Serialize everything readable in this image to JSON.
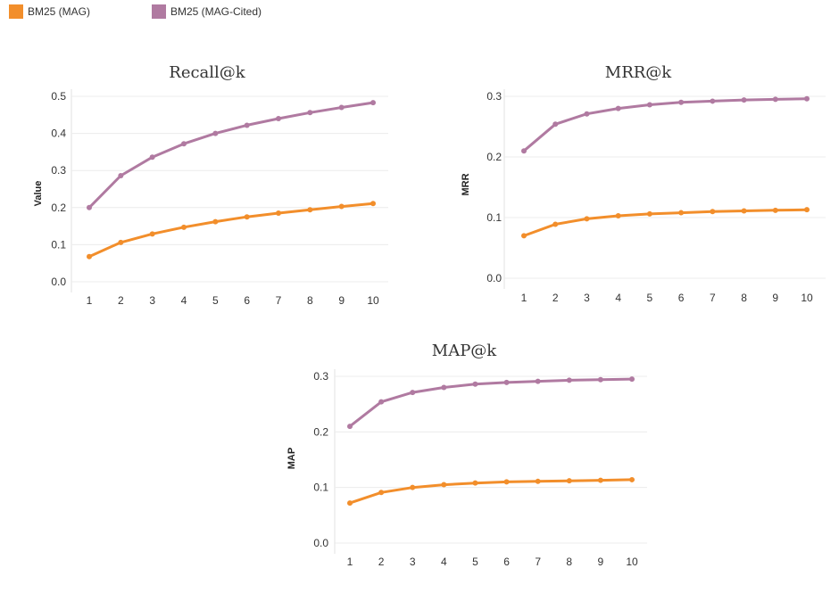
{
  "legend": {
    "items": [
      {
        "label": "BM25 (MAG)",
        "color": "#f28e2b"
      },
      {
        "label": "BM25 (MAG-Cited)",
        "color": "#b07aa1"
      }
    ]
  },
  "chart_data": [
    {
      "type": "line",
      "title": "Recall@k",
      "xlabel": "",
      "ylabel": "Value",
      "x": [
        1,
        2,
        3,
        4,
        5,
        6,
        7,
        8,
        9,
        10
      ],
      "ylim": [
        0,
        0.5
      ],
      "yticks": [
        "0.0",
        "0.1",
        "0.2",
        "0.3",
        "0.4",
        "0.5"
      ],
      "grid": true,
      "series": [
        {
          "name": "BM25 (MAG)",
          "color": "#f28e2b",
          "values": [
            0.068,
            0.106,
            0.129,
            0.147,
            0.162,
            0.175,
            0.185,
            0.194,
            0.203,
            0.211
          ]
        },
        {
          "name": "BM25 (MAG-Cited)",
          "color": "#b07aa1",
          "values": [
            0.2,
            0.286,
            0.336,
            0.372,
            0.4,
            0.422,
            0.44,
            0.456,
            0.47,
            0.483
          ]
        }
      ]
    },
    {
      "type": "line",
      "title": "MRR@k",
      "xlabel": "",
      "ylabel": "MRR",
      "x": [
        1,
        2,
        3,
        4,
        5,
        6,
        7,
        8,
        9,
        10
      ],
      "ylim": [
        0,
        0.3
      ],
      "yticks": [
        "0.0",
        "0.1",
        "0.2",
        "0.3"
      ],
      "grid": true,
      "series": [
        {
          "name": "BM25 (MAG)",
          "color": "#f28e2b",
          "values": [
            0.07,
            0.089,
            0.098,
            0.103,
            0.106,
            0.108,
            0.11,
            0.111,
            0.112,
            0.113
          ]
        },
        {
          "name": "BM25 (MAG-Cited)",
          "color": "#b07aa1",
          "values": [
            0.21,
            0.254,
            0.271,
            0.28,
            0.286,
            0.29,
            0.292,
            0.294,
            0.295,
            0.296
          ]
        }
      ]
    },
    {
      "type": "line",
      "title": "MAP@k",
      "xlabel": "",
      "ylabel": "MAP",
      "x": [
        1,
        2,
        3,
        4,
        5,
        6,
        7,
        8,
        9,
        10
      ],
      "ylim": [
        0,
        0.3
      ],
      "yticks": [
        "0.0",
        "0.1",
        "0.2",
        "0.3"
      ],
      "grid": true,
      "series": [
        {
          "name": "BM25 (MAG)",
          "color": "#f28e2b",
          "values": [
            0.072,
            0.091,
            0.1,
            0.105,
            0.108,
            0.11,
            0.111,
            0.112,
            0.113,
            0.114
          ]
        },
        {
          "name": "BM25 (MAG-Cited)",
          "color": "#b07aa1",
          "values": [
            0.21,
            0.254,
            0.271,
            0.28,
            0.286,
            0.289,
            0.291,
            0.293,
            0.294,
            0.295
          ]
        }
      ]
    }
  ]
}
